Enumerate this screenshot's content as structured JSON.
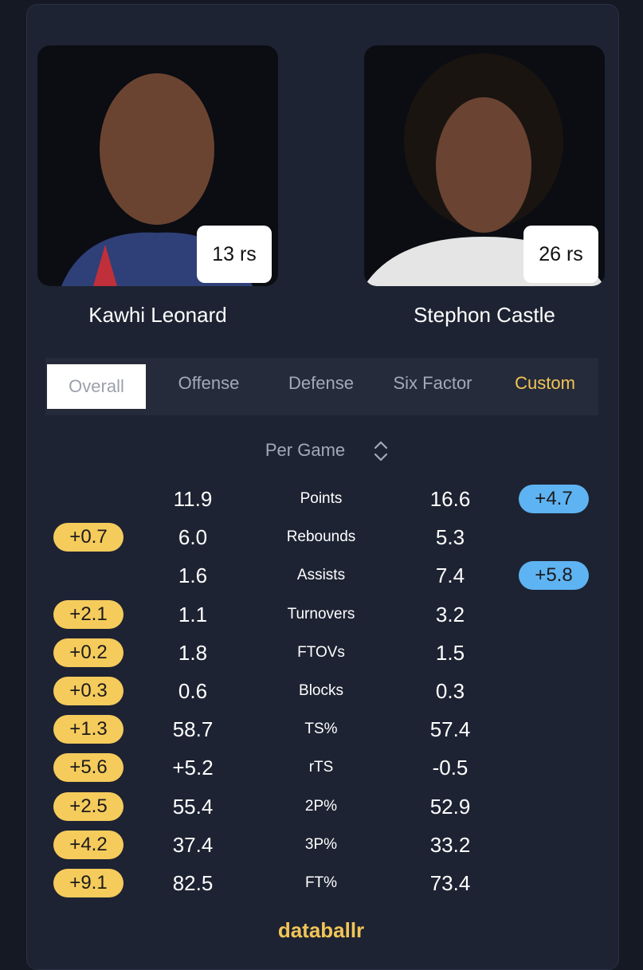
{
  "players": [
    {
      "name": "Kawhi Leonard",
      "badge": "13 rs"
    },
    {
      "name": "Stephon Castle",
      "badge": "26 rs"
    }
  ],
  "tabs": {
    "items": [
      "Overall",
      "Offense",
      "Defense",
      "Six Factor",
      "Custom"
    ],
    "selected": 0,
    "highlight": 4
  },
  "mode": "Per Game",
  "rows": [
    {
      "label": "Points",
      "left": "11.9",
      "right": "16.6",
      "left_badge": null,
      "right_badge": "+4.7"
    },
    {
      "label": "Rebounds",
      "left": "6.0",
      "right": "5.3",
      "left_badge": "+0.7",
      "right_badge": null
    },
    {
      "label": "Assists",
      "left": "1.6",
      "right": "7.4",
      "left_badge": null,
      "right_badge": "+5.8"
    },
    {
      "label": "Turnovers",
      "left": "1.1",
      "right": "3.2",
      "left_badge": "+2.1",
      "right_badge": null
    },
    {
      "label": "FTOVs",
      "left": "1.8",
      "right": "1.5",
      "left_badge": "+0.2",
      "right_badge": null
    },
    {
      "label": "Blocks",
      "left": "0.6",
      "right": "0.3",
      "left_badge": "+0.3",
      "right_badge": null
    },
    {
      "label": "TS%",
      "left": "58.7",
      "right": "57.4",
      "left_badge": "+1.3",
      "right_badge": null
    },
    {
      "label": "rTS",
      "left": "+5.2",
      "right": "-0.5",
      "left_badge": "+5.6",
      "right_badge": null
    },
    {
      "label": "2P%",
      "left": "55.4",
      "right": "52.9",
      "left_badge": "+2.5",
      "right_badge": null
    },
    {
      "label": "3P%",
      "left": "37.4",
      "right": "33.2",
      "left_badge": "+4.2",
      "right_badge": null
    },
    {
      "label": "FT%",
      "left": "82.5",
      "right": "73.4",
      "left_badge": "+9.1",
      "right_badge": null
    }
  ],
  "brand": "databallr"
}
